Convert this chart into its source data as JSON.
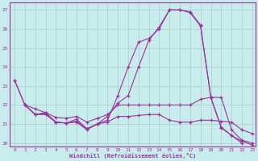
{
  "xlabel": "Windchill (Refroidissement éolien,°C)",
  "bg_color": "#c8ecec",
  "grid_color": "#aacccc",
  "line_color": "#993399",
  "xlim_min": -0.5,
  "xlim_max": 23.3,
  "ylim_min": 19.8,
  "ylim_max": 27.4,
  "yticks": [
    20,
    21,
    22,
    23,
    24,
    25,
    26,
    27
  ],
  "xticks": [
    0,
    1,
    2,
    3,
    4,
    5,
    6,
    7,
    8,
    9,
    10,
    11,
    12,
    13,
    14,
    15,
    16,
    17,
    18,
    19,
    20,
    21,
    22,
    23
  ],
  "series": [
    {
      "x": [
        0,
        1,
        2,
        3,
        4,
        5,
        6,
        7,
        8,
        9,
        10,
        11,
        12,
        13,
        14,
        15,
        16,
        17,
        18,
        19,
        20,
        21,
        22
      ],
      "y": [
        23.3,
        22.0,
        21.5,
        21.6,
        21.1,
        21.05,
        21.1,
        20.7,
        21.0,
        21.4,
        22.1,
        22.5,
        24.0,
        25.4,
        26.1,
        27.0,
        27.0,
        26.9,
        26.2,
        22.4,
        20.8,
        20.4,
        20.0
      ]
    },
    {
      "x": [
        0,
        1,
        2,
        3,
        4,
        5,
        6,
        7,
        8,
        9,
        10,
        11,
        12,
        13,
        14,
        15,
        16,
        17,
        18,
        19,
        20,
        21,
        22,
        23
      ],
      "y": [
        23.3,
        22.0,
        21.8,
        21.6,
        21.35,
        21.3,
        21.4,
        21.1,
        21.3,
        21.5,
        22.0,
        22.0,
        22.0,
        22.0,
        22.0,
        22.0,
        22.0,
        22.0,
        22.3,
        22.4,
        22.4,
        20.7,
        20.15,
        20.0
      ]
    },
    {
      "x": [
        1,
        2,
        3,
        4,
        5,
        6,
        7,
        8,
        9,
        10,
        11,
        12,
        13,
        14,
        15,
        16,
        17,
        18,
        19,
        20,
        21,
        22,
        23
      ],
      "y": [
        22.0,
        21.5,
        21.55,
        21.1,
        21.05,
        21.25,
        20.75,
        21.0,
        21.2,
        22.5,
        24.0,
        25.3,
        25.5,
        26.0,
        27.0,
        27.0,
        26.85,
        26.15,
        22.4,
        20.85,
        20.4,
        20.1,
        19.9
      ]
    },
    {
      "x": [
        1,
        2,
        3,
        4,
        5,
        6,
        7,
        8,
        9,
        10,
        11,
        12,
        13,
        14,
        15,
        16,
        17,
        18,
        19,
        20,
        21,
        22,
        23
      ],
      "y": [
        22.0,
        21.5,
        21.5,
        21.1,
        21.05,
        21.15,
        20.75,
        21.0,
        21.1,
        21.4,
        21.4,
        21.45,
        21.5,
        21.5,
        21.2,
        21.1,
        21.1,
        21.2,
        21.2,
        21.15,
        21.1,
        20.7,
        20.5
      ]
    }
  ]
}
